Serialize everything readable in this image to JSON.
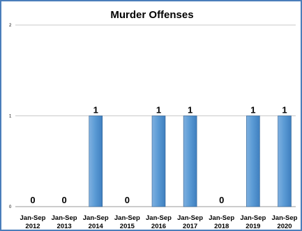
{
  "chart_data": {
    "type": "bar",
    "title": "Murder Offenses",
    "xlabel": "",
    "ylabel": "",
    "categories": [
      [
        "Jan-Sep",
        "2012"
      ],
      [
        "Jan-Sep",
        "2013"
      ],
      [
        "Jan-Sep",
        "2014"
      ],
      [
        "Jan-Sep",
        "2015"
      ],
      [
        "Jan-Sep",
        "2016"
      ],
      [
        "Jan-Sep",
        "2017"
      ],
      [
        "Jan-Sep",
        "2018"
      ],
      [
        "Jan-Sep",
        "2019"
      ],
      [
        "Jan-Sep",
        "2020"
      ]
    ],
    "values": [
      0,
      0,
      1,
      0,
      1,
      1,
      0,
      1,
      1
    ],
    "data_labels": [
      "0",
      "0",
      "1",
      "0",
      "1",
      "1",
      "0",
      "1",
      "1"
    ],
    "yticks": [
      "0",
      "1",
      "2"
    ],
    "ylim": [
      0,
      2
    ],
    "grid": true,
    "legend": "none",
    "bar_color": "#5b9bd5",
    "frame_color": "#4a7ebb"
  }
}
